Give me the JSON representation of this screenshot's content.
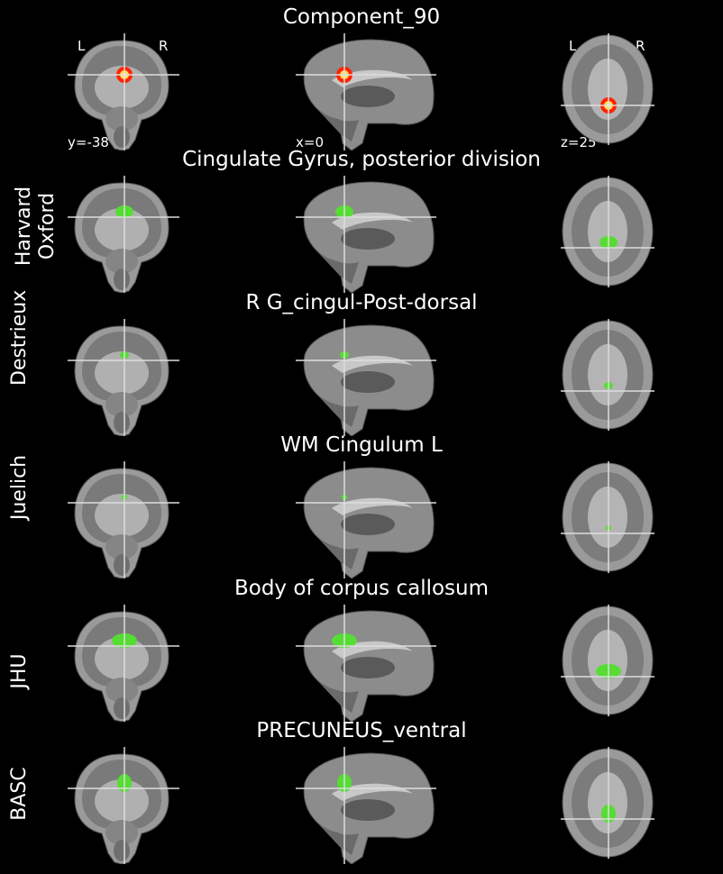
{
  "main_title": "Component_90",
  "orientation": {
    "left": "L",
    "right": "R"
  },
  "coords": {
    "coronal": "y=-38",
    "sagittal": "x=0",
    "axial": "z=25"
  },
  "rows": [
    {
      "atlas": "",
      "region": "Component_90",
      "overlay": "heat",
      "color": "#ff3300"
    },
    {
      "atlas": "Harvard\nOxford",
      "region": "Cingulate Gyrus, posterior division",
      "overlay": "green",
      "color": "#55dd33"
    },
    {
      "atlas": "Destrieux",
      "region": "R G_cingul-Post-dorsal",
      "overlay": "green",
      "color": "#55dd33"
    },
    {
      "atlas": "Juelich",
      "region": "WM Cingulum L",
      "overlay": "green",
      "color": "#55dd33"
    },
    {
      "atlas": "JHU",
      "region": "Body of corpus callosum",
      "overlay": "green",
      "color": "#55dd33"
    },
    {
      "atlas": "BASC",
      "region": "PRECUNEUS_ventral",
      "overlay": "green",
      "color": "#55dd33"
    }
  ]
}
